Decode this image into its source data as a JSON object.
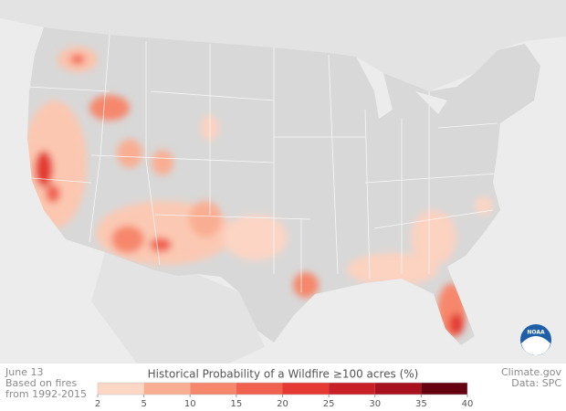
{
  "date": "June 13",
  "note": [
    "Based on fires",
    "from 1992-2015"
  ],
  "logo": "NOAA",
  "credit": [
    "Climate.gov",
    "Data: SPC"
  ],
  "legend": {
    "title": "Historical Probability of a Wildfire ≥100 acres (%)",
    "ticks": [
      2,
      5,
      10,
      15,
      20,
      25,
      30,
      35,
      40
    ],
    "colors": [
      "#fdd7c6",
      "#f9ae93",
      "#f6876c",
      "#f0624f",
      "#e43a33",
      "#c92027",
      "#a8121e",
      "#640010"
    ]
  }
}
